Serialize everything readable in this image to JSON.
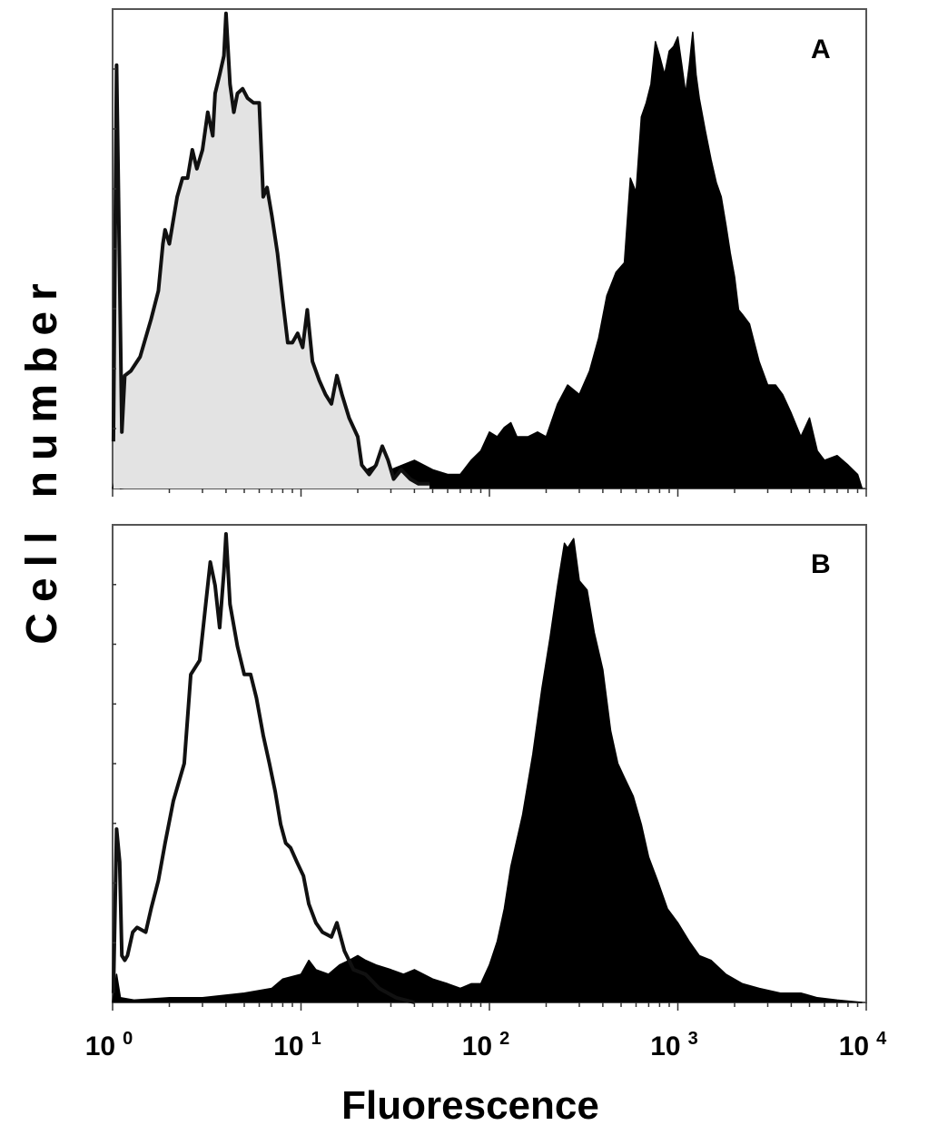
{
  "chart_data": [
    {
      "type": "area",
      "panel_label": "A",
      "x_scale": "log",
      "xlim": [
        1,
        10000
      ],
      "y_scale": "linear",
      "ylim": [
        0,
        100
      ],
      "grid": false,
      "series": [
        {
          "style": "outline, light grey fill",
          "fill": "#e3e3e3",
          "stroke": "#111111",
          "points": [
            [
              1.01,
              10
            ],
            [
              1.05,
              90
            ],
            [
              1.09,
              45
            ],
            [
              1.12,
              12
            ],
            [
              1.16,
              24
            ],
            [
              1.25,
              25
            ],
            [
              1.4,
              28
            ],
            [
              1.6,
              36
            ],
            [
              1.75,
              42
            ],
            [
              1.85,
              52
            ],
            [
              1.9,
              55
            ],
            [
              2.0,
              52
            ],
            [
              2.2,
              62
            ],
            [
              2.35,
              66
            ],
            [
              2.5,
              66
            ],
            [
              2.65,
              72
            ],
            [
              2.8,
              68
            ],
            [
              3.0,
              72
            ],
            [
              3.2,
              80
            ],
            [
              3.4,
              75
            ],
            [
              3.5,
              84
            ],
            [
              3.7,
              88
            ],
            [
              3.9,
              92
            ],
            [
              4.0,
              101
            ],
            [
              4.2,
              86
            ],
            [
              4.4,
              80
            ],
            [
              4.6,
              84
            ],
            [
              4.9,
              85
            ],
            [
              5.2,
              83
            ],
            [
              5.6,
              82
            ],
            [
              6.0,
              82
            ],
            [
              6.3,
              62
            ],
            [
              6.6,
              64
            ],
            [
              7.0,
              58
            ],
            [
              7.5,
              50
            ],
            [
              8.0,
              40
            ],
            [
              8.5,
              31
            ],
            [
              9.0,
              31
            ],
            [
              9.6,
              33
            ],
            [
              10.2,
              30
            ],
            [
              10.8,
              38
            ],
            [
              11.5,
              27
            ],
            [
              12.5,
              23
            ],
            [
              13.5,
              20
            ],
            [
              14.5,
              18
            ],
            [
              15.5,
              24
            ],
            [
              16.5,
              20
            ],
            [
              18.0,
              15
            ],
            [
              20.0,
              11
            ],
            [
              21.0,
              5
            ],
            [
              23.0,
              3
            ],
            [
              25.0,
              5
            ],
            [
              27.0,
              9
            ],
            [
              29.0,
              6
            ],
            [
              31.0,
              2
            ],
            [
              34.0,
              4
            ],
            [
              38.0,
              2
            ],
            [
              42.0,
              1
            ],
            [
              48.0,
              1
            ]
          ]
        },
        {
          "style": "solid black fill",
          "fill": "#000000",
          "stroke": "#000000",
          "points": [
            [
              1.0,
              0
            ],
            [
              1.05,
              3
            ],
            [
              1.1,
              0
            ],
            [
              1.3,
              0.5
            ],
            [
              1.8,
              1
            ],
            [
              2.5,
              1
            ],
            [
              3.5,
              3
            ],
            [
              4.5,
              1.5
            ],
            [
              6.0,
              3
            ],
            [
              8.0,
              2
            ],
            [
              10.0,
              3
            ],
            [
              12.0,
              2
            ],
            [
              15.0,
              4
            ],
            [
              20.0,
              3
            ],
            [
              25.0,
              5
            ],
            [
              30.0,
              4
            ],
            [
              40.0,
              6
            ],
            [
              50.0,
              4
            ],
            [
              60.0,
              3
            ],
            [
              70.0,
              3
            ],
            [
              80.0,
              6
            ],
            [
              90.0,
              8
            ],
            [
              100.0,
              12
            ],
            [
              110.0,
              11
            ],
            [
              120.0,
              13
            ],
            [
              130.0,
              14
            ],
            [
              140.0,
              11
            ],
            [
              160.0,
              11
            ],
            [
              180.0,
              12
            ],
            [
              200.0,
              11
            ],
            [
              230.0,
              18
            ],
            [
              260.0,
              22
            ],
            [
              300.0,
              20
            ],
            [
              340.0,
              25
            ],
            [
              380.0,
              32
            ],
            [
              420.0,
              41
            ],
            [
              470.0,
              46
            ],
            [
              520.0,
              48
            ],
            [
              560.0,
              66
            ],
            [
              600.0,
              63
            ],
            [
              640.0,
              79
            ],
            [
              680.0,
              82
            ],
            [
              720.0,
              86
            ],
            [
              760.0,
              95
            ],
            [
              800.0,
              92
            ],
            [
              850.0,
              88
            ],
            [
              900.0,
              93
            ],
            [
              950.0,
              94
            ],
            [
              1000.0,
              96
            ],
            [
              1050.0,
              90
            ],
            [
              1100.0,
              84
            ],
            [
              1150.0,
              90
            ],
            [
              1200.0,
              97
            ],
            [
              1250.0,
              88
            ],
            [
              1300.0,
              83
            ],
            [
              1400.0,
              76
            ],
            [
              1500.0,
              70
            ],
            [
              1600.0,
              65
            ],
            [
              1700.0,
              62
            ],
            [
              1800.0,
              56
            ],
            [
              1900.0,
              50
            ],
            [
              2000.0,
              45
            ],
            [
              2100.0,
              38
            ],
            [
              2200.0,
              37
            ],
            [
              2400.0,
              35
            ],
            [
              2700.0,
              27
            ],
            [
              3000.0,
              22
            ],
            [
              3300.0,
              22
            ],
            [
              3600.0,
              20
            ],
            [
              4000.0,
              16
            ],
            [
              4500.0,
              11
            ],
            [
              5000.0,
              15
            ],
            [
              5500.0,
              8
            ],
            [
              6000.0,
              6
            ],
            [
              7000.0,
              7
            ],
            [
              8000.0,
              5
            ],
            [
              9000.0,
              3
            ],
            [
              9500.0,
              0
            ]
          ]
        }
      ]
    },
    {
      "type": "area",
      "panel_label": "B",
      "x_scale": "log",
      "xlim": [
        1,
        10000
      ],
      "y_scale": "linear",
      "ylim": [
        0,
        100
      ],
      "grid": false,
      "series": [
        {
          "style": "outline, no fill",
          "fill": "none",
          "stroke": "#111111",
          "points": [
            [
              1.01,
              2
            ],
            [
              1.05,
              37
            ],
            [
              1.09,
              30
            ],
            [
              1.12,
              10
            ],
            [
              1.16,
              9
            ],
            [
              1.2,
              10
            ],
            [
              1.28,
              15
            ],
            [
              1.35,
              16
            ],
            [
              1.5,
              15
            ],
            [
              1.6,
              20
            ],
            [
              1.75,
              26
            ],
            [
              1.9,
              34
            ],
            [
              2.1,
              43
            ],
            [
              2.4,
              51
            ],
            [
              2.6,
              70
            ],
            [
              2.9,
              73
            ],
            [
              3.1,
              84
            ],
            [
              3.3,
              94
            ],
            [
              3.5,
              89
            ],
            [
              3.7,
              80
            ],
            [
              3.9,
              92
            ],
            [
              4.0,
              100
            ],
            [
              4.2,
              85
            ],
            [
              4.6,
              76
            ],
            [
              5.0,
              70
            ],
            [
              5.4,
              70
            ],
            [
              5.8,
              65
            ],
            [
              6.3,
              57
            ],
            [
              6.8,
              51
            ],
            [
              7.3,
              45
            ],
            [
              7.8,
              38
            ],
            [
              8.3,
              34
            ],
            [
              8.8,
              33
            ],
            [
              9.5,
              30
            ],
            [
              10.3,
              27
            ],
            [
              11.0,
              21
            ],
            [
              12.0,
              17
            ],
            [
              13.0,
              15
            ],
            [
              14.5,
              14
            ],
            [
              15.5,
              17
            ],
            [
              17.0,
              11
            ],
            [
              19.0,
              7
            ],
            [
              22.0,
              6
            ],
            [
              26.0,
              3
            ],
            [
              32.0,
              1
            ],
            [
              40.0,
              0
            ]
          ]
        },
        {
          "style": "solid black fill",
          "fill": "#000000",
          "stroke": "#000000",
          "points": [
            [
              1.0,
              0
            ],
            [
              1.05,
              6
            ],
            [
              1.1,
              1
            ],
            [
              1.3,
              0.5
            ],
            [
              2.0,
              1
            ],
            [
              3.0,
              1
            ],
            [
              5.0,
              2
            ],
            [
              7.0,
              3
            ],
            [
              8.0,
              5
            ],
            [
              10.0,
              6
            ],
            [
              11.0,
              9
            ],
            [
              12.0,
              7
            ],
            [
              14.0,
              6
            ],
            [
              16.0,
              8
            ],
            [
              18.0,
              9
            ],
            [
              20.0,
              10
            ],
            [
              22.0,
              9
            ],
            [
              25.0,
              8
            ],
            [
              30.0,
              7
            ],
            [
              35.0,
              6
            ],
            [
              40.0,
              7
            ],
            [
              50.0,
              5
            ],
            [
              60.0,
              4
            ],
            [
              70.0,
              3
            ],
            [
              80.0,
              4
            ],
            [
              90.0,
              4
            ],
            [
              100.0,
              8
            ],
            [
              110.0,
              13
            ],
            [
              120.0,
              20
            ],
            [
              130.0,
              29
            ],
            [
              150.0,
              40
            ],
            [
              170.0,
              53
            ],
            [
              190.0,
              67
            ],
            [
              210.0,
              78
            ],
            [
              230.0,
              89
            ],
            [
              250.0,
              98
            ],
            [
              260.0,
              97
            ],
            [
              280.0,
              99
            ],
            [
              300.0,
              90
            ],
            [
              330.0,
              88
            ],
            [
              360.0,
              79
            ],
            [
              400.0,
              71
            ],
            [
              440.0,
              58
            ],
            [
              480.0,
              51
            ],
            [
              520.0,
              48
            ],
            [
              580.0,
              44
            ],
            [
              640.0,
              38
            ],
            [
              700.0,
              31
            ],
            [
              780.0,
              26
            ],
            [
              880.0,
              20
            ],
            [
              1000.0,
              17
            ],
            [
              1150.0,
              13
            ],
            [
              1300.0,
              10
            ],
            [
              1500.0,
              9
            ],
            [
              1800.0,
              6
            ],
            [
              2200.0,
              4
            ],
            [
              2700.0,
              3
            ],
            [
              3500.0,
              2
            ],
            [
              4500.0,
              2
            ],
            [
              5500.0,
              1
            ],
            [
              7000.0,
              0.5
            ],
            [
              9500.0,
              0
            ]
          ]
        }
      ]
    }
  ],
  "axes": {
    "ylabel": "Cell number",
    "xlabel": "Fluorescence",
    "x_ticks": [
      {
        "value": 1,
        "base": "10",
        "exp": "0"
      },
      {
        "value": 10,
        "base": "10",
        "exp": "1"
      },
      {
        "value": 100,
        "base": "10",
        "exp": "2"
      },
      {
        "value": 1000,
        "base": "10",
        "exp": "3"
      },
      {
        "value": 10000,
        "base": "10",
        "exp": "4"
      }
    ]
  }
}
